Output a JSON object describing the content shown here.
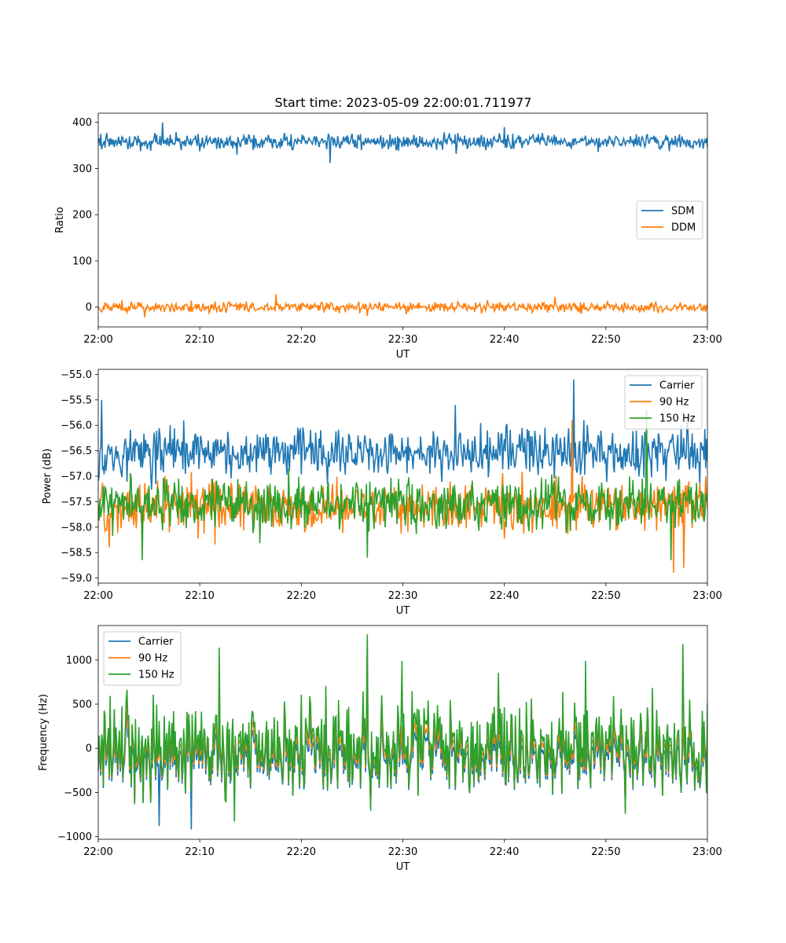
{
  "figure": {
    "title": "Start time: 2023-05-09 22:00:01.711977"
  },
  "chart_data": [
    {
      "type": "line",
      "xlabel": "UT",
      "ylabel": "Ratio",
      "x_range": [
        "22:00",
        "23:00"
      ],
      "xticks": [
        "22:00",
        "22:10",
        "22:20",
        "22:30",
        "22:40",
        "22:50",
        "23:00"
      ],
      "ylim": [
        -43,
        420
      ],
      "yticks": [
        0,
        100,
        200,
        300,
        400
      ],
      "ytick_labels": [
        "0",
        "100",
        "200",
        "300",
        "400"
      ],
      "legend_placement": "center-right",
      "series": [
        {
          "name": "SDM",
          "color": "#1f77b4",
          "mean": 358,
          "amplitude": 12,
          "highlights": [
            [
              6.3,
              400
            ],
            [
              13.7,
              330
            ],
            [
              22.8,
              312
            ],
            [
              40.0,
              390
            ]
          ]
        },
        {
          "name": "DDM",
          "color": "#ff7f0e",
          "mean": 0,
          "amplitude": 8,
          "highlights": [
            [
              17.5,
              28
            ],
            [
              4.6,
              -22
            ],
            [
              26.5,
              -19
            ],
            [
              45.0,
              22
            ]
          ]
        }
      ]
    },
    {
      "type": "line",
      "xlabel": "UT",
      "ylabel": "Power (dB)",
      "x_range": [
        "22:00",
        "23:00"
      ],
      "xticks": [
        "22:00",
        "22:10",
        "22:20",
        "22:30",
        "22:40",
        "22:50",
        "23:00"
      ],
      "ylim": [
        -59.1,
        -54.9
      ],
      "yticks": [
        -59.0,
        -58.5,
        -58.0,
        -57.5,
        -57.0,
        -56.5,
        -56.0,
        -55.5,
        -55.0
      ],
      "ytick_labels": [
        "−59.0",
        "−58.5",
        "−58.0",
        "−57.5",
        "−57.0",
        "−56.5",
        "−56.0",
        "−55.5",
        "−55.0"
      ],
      "legend_placement": "top-right",
      "series": [
        {
          "name": "Carrier",
          "color": "#1f77b4",
          "mean": -56.55,
          "amplitude": 0.35,
          "highlights": [
            [
              0.3,
              -55.5
            ],
            [
              46.8,
              -55.1
            ],
            [
              35.2,
              -55.6
            ],
            [
              0.1,
              -57.0
            ]
          ]
        },
        {
          "name": "90 Hz",
          "color": "#ff7f0e",
          "mean": -57.6,
          "amplitude": 0.35,
          "highlights": [
            [
              46.7,
              -55.9
            ],
            [
              56.7,
              -58.9
            ],
            [
              57.7,
              -58.8
            ],
            [
              1.1,
              -58.4
            ]
          ]
        },
        {
          "name": "150 Hz",
          "color": "#2ca02c",
          "mean": -57.55,
          "amplitude": 0.35,
          "highlights": [
            [
              54.0,
              -55.7
            ],
            [
              4.3,
              -58.65
            ],
            [
              26.5,
              -58.6
            ],
            [
              56.4,
              -58.65
            ]
          ]
        }
      ]
    },
    {
      "type": "line",
      "xlabel": "UT",
      "ylabel": "Frequency (Hz)",
      "x_range": [
        "22:00",
        "23:00"
      ],
      "xticks": [
        "22:00",
        "22:10",
        "22:20",
        "22:30",
        "22:40",
        "22:50",
        "23:00"
      ],
      "ylim": [
        -1030,
        1390
      ],
      "yticks": [
        -1000,
        -500,
        0,
        500,
        1000
      ],
      "ytick_labels": [
        "−1000",
        "−500",
        "0",
        "500",
        "1000"
      ],
      "legend_placement": "top-left",
      "series": [
        {
          "name": "Carrier",
          "color": "#1f77b4",
          "mean": -100,
          "amplitude": 280,
          "highlights": [
            [
              9.2,
              -920
            ],
            [
              6.0,
              -880
            ],
            [
              26.5,
              1000
            ]
          ]
        },
        {
          "name": "90 Hz",
          "color": "#ff7f0e",
          "mean": -30,
          "amplitude": 300,
          "highlights": [
            [
              26.5,
              1150
            ]
          ]
        },
        {
          "name": "150 Hz",
          "color": "#2ca02c",
          "mean": 30,
          "amplitude": 330,
          "highlights": [
            [
              26.5,
              1290
            ],
            [
              11.9,
              1140
            ],
            [
              57.6,
              1180
            ],
            [
              48.0,
              990
            ],
            [
              29.9,
              990
            ],
            [
              13.4,
              -830
            ]
          ]
        }
      ]
    }
  ]
}
